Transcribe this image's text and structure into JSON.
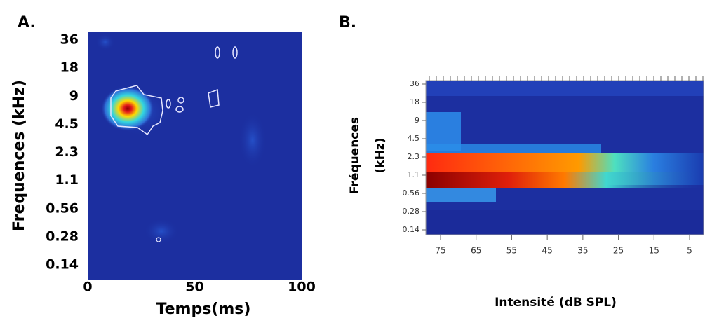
{
  "chart_data": [
    {
      "type": "heatmap",
      "panel": "A.",
      "xlabel": "Temps(ms)",
      "ylabel": "Frequences (kHz)",
      "xlim": [
        0,
        100
      ],
      "xticks": [
        0,
        50,
        100
      ],
      "y_categories": [
        36,
        18,
        9,
        4.5,
        2.3,
        1.1,
        0.56,
        0.28,
        0.14
      ]
    },
    {
      "type": "heatmap",
      "panel": "B.",
      "xlabel": "Intensité (dB SPL)",
      "ylabel": [
        "Fréquences",
        "(kHz)"
      ],
      "x_categories": [
        75,
        65,
        55,
        45,
        35,
        25,
        15,
        5
      ],
      "y_categories": [
        36,
        18,
        9,
        4.5,
        2.3,
        1.1,
        0.56,
        0.28,
        0.14
      ]
    }
  ]
}
